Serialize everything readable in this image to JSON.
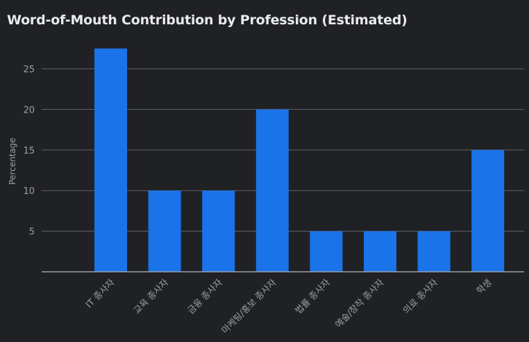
{
  "chart_data": {
    "type": "bar",
    "title": "Word-of-Mouth Contribution by Profession (Estimated)",
    "xlabel": "",
    "ylabel": "Percentage",
    "categories": [
      "IT 종사자",
      "교육 종사자",
      "금융 종사자",
      "마케팅/홍보 종사자",
      "법률 종사자",
      "예술/창작 종사자",
      "의료 종사자",
      "학생"
    ],
    "values": [
      27.5,
      10,
      10,
      20,
      5,
      5,
      5,
      15
    ],
    "ylim": [
      0,
      28
    ],
    "yticks": [
      5,
      10,
      15,
      20,
      25
    ],
    "grid": true,
    "legend": "none",
    "colors": {
      "bar": "#1a73e8",
      "background": "#202124",
      "grid": "#5f6368",
      "axis": "#9aa0a6",
      "text": "#e8eaed"
    }
  }
}
